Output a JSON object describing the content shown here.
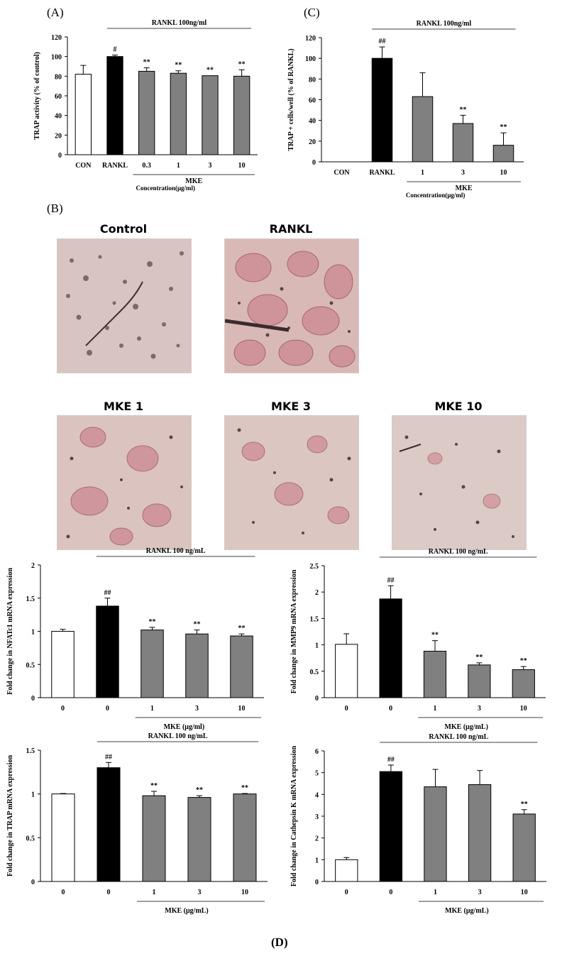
{
  "panel_labels": {
    "A": "(A)",
    "B": "(B)",
    "C": "(C)",
    "D": "(D)"
  },
  "photos": {
    "control": "Control",
    "rankl": "RANKL",
    "mke1": "MKE 1",
    "mke3": "MKE 3",
    "mke10": "MKE 10"
  },
  "colors": {
    "white_bar": "#ffffff",
    "black_bar": "#000000",
    "gray_bar": "#808080",
    "stain": "#c98a92"
  },
  "chart_data": [
    {
      "id": "A",
      "type": "bar",
      "ylabel": "TRAP activity (% of control)",
      "ylim": [
        0,
        120
      ],
      "yticks": [
        0,
        20,
        40,
        60,
        80,
        100,
        120
      ],
      "categories": [
        "CON",
        "RANKL",
        "0.3",
        "1",
        "3",
        "10"
      ],
      "values": [
        82,
        100,
        85,
        83,
        80.5,
        80
      ],
      "errors": [
        9,
        1.5,
        3.5,
        2.5,
        0,
        6.5
      ],
      "fills": [
        "white",
        "black",
        "gray",
        "gray",
        "gray",
        "gray"
      ],
      "annotations": [
        "",
        "#",
        "**",
        "**",
        "**",
        "**"
      ],
      "top_bracket": "RANKL 100ng/ml",
      "bottom_bracket": "MKE",
      "xlabel": "Concentration(μg/ml)"
    },
    {
      "id": "C",
      "type": "bar",
      "ylabel": "TRAP + cells/well (% of RANKL)",
      "ylim": [
        0,
        120
      ],
      "yticks": [
        0,
        20,
        40,
        60,
        80,
        100,
        120
      ],
      "categories": [
        "CON",
        "RANKL",
        "1",
        "3",
        "10"
      ],
      "values": [
        0,
        100,
        63,
        37,
        16
      ],
      "errors": [
        0,
        11,
        23,
        8,
        12
      ],
      "fills": [
        "white",
        "black",
        "gray",
        "gray",
        "gray"
      ],
      "annotations": [
        "",
        "##",
        "",
        "**",
        "**"
      ],
      "top_bracket": "RANKL 100ng/ml",
      "bottom_bracket": "MKE",
      "xlabel": "Concentration(μg/ml)"
    },
    {
      "id": "D1",
      "type": "bar",
      "ylabel": "Fold change in NFATc1 mRNA expression",
      "ylim": [
        0,
        2
      ],
      "yticks": [
        0,
        0.5,
        1,
        1.5,
        2
      ],
      "categories": [
        "0",
        "0",
        "1",
        "3",
        "10"
      ],
      "values": [
        1.0,
        1.38,
        1.02,
        0.96,
        0.93
      ],
      "errors": [
        0.03,
        0.12,
        0.04,
        0.06,
        0.03
      ],
      "fills": [
        "white",
        "black",
        "gray",
        "gray",
        "gray"
      ],
      "annotations": [
        "",
        "##",
        "**",
        "**",
        "**"
      ],
      "top_bracket": "RANKL 100 ng/mL",
      "bottom_bracket": "",
      "xlabel": "MKE (μg/ml)"
    },
    {
      "id": "D2",
      "type": "bar",
      "ylabel": "Fold change in MMP9 mRNA expression",
      "ylim": [
        0,
        2.5
      ],
      "yticks": [
        0,
        0.5,
        1,
        1.5,
        2,
        2.5
      ],
      "categories": [
        "0",
        "0",
        "1",
        "3",
        "10"
      ],
      "values": [
        1.01,
        1.87,
        0.88,
        0.62,
        0.53
      ],
      "errors": [
        0.2,
        0.25,
        0.2,
        0.04,
        0.06
      ],
      "fills": [
        "white",
        "black",
        "gray",
        "gray",
        "gray"
      ],
      "annotations": [
        "",
        "##",
        "**",
        "**",
        "**"
      ],
      "top_bracket": "RANKL 100 ng/mL",
      "bottom_bracket": "",
      "xlabel": "MKE (μg/mL)"
    },
    {
      "id": "D3",
      "type": "bar",
      "ylabel": "Fold change in TRAP mRNA expression",
      "ylim": [
        0,
        1.5
      ],
      "yticks": [
        0,
        0.5,
        1,
        1.5
      ],
      "categories": [
        "0",
        "0",
        "1",
        "3",
        "10"
      ],
      "values": [
        1.0,
        1.3,
        0.98,
        0.96,
        1.0
      ],
      "errors": [
        0.005,
        0.06,
        0.05,
        0.02,
        0.005
      ],
      "fills": [
        "white",
        "black",
        "gray",
        "gray",
        "gray"
      ],
      "annotations": [
        "",
        "##",
        "**",
        "**",
        "**"
      ],
      "top_bracket": "RANKL 100 ng/mL",
      "bottom_bracket": "",
      "xlabel": "MKE (μg/mL)"
    },
    {
      "id": "D4",
      "type": "bar",
      "ylabel": "Fold change in Cathepsin K mRNA expression",
      "ylim": [
        0,
        6
      ],
      "yticks": [
        0,
        1,
        2,
        3,
        4,
        5,
        6
      ],
      "categories": [
        "0",
        "0",
        "1",
        "3",
        "10"
      ],
      "values": [
        1.0,
        5.05,
        4.35,
        4.45,
        3.1
      ],
      "errors": [
        0.1,
        0.3,
        0.8,
        0.65,
        0.2
      ],
      "fills": [
        "white",
        "black",
        "gray",
        "gray",
        "gray"
      ],
      "annotations": [
        "",
        "##",
        "",
        "",
        "**"
      ],
      "top_bracket": "RANKL 100 ng/mL",
      "bottom_bracket": "",
      "xlabel": "MKE (μg/mL)"
    }
  ]
}
